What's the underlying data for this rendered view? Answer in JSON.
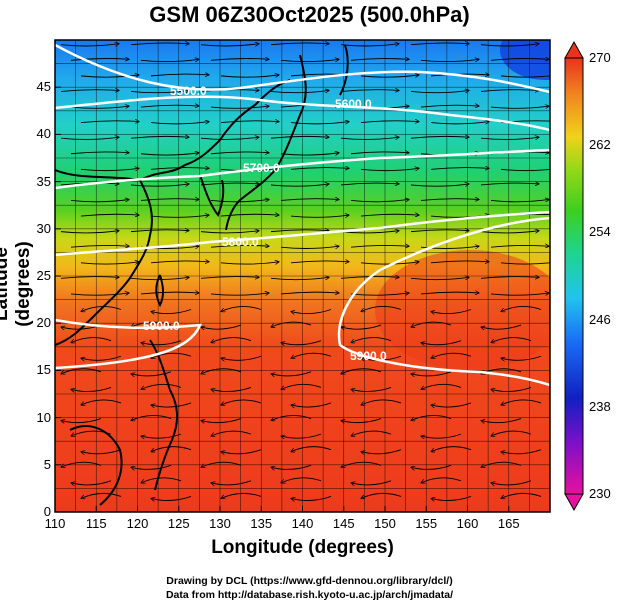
{
  "title": "GSM 06Z30Oct2025 (500.0hPa)",
  "axes": {
    "xlabel": "Longitude (degrees)",
    "ylabel": "Latitude (degrees)",
    "xticks": [
      "110",
      "115",
      "120",
      "125",
      "130",
      "135",
      "140",
      "145",
      "150",
      "155",
      "160",
      "165"
    ],
    "yticks": [
      "0",
      "5",
      "10",
      "15",
      "20",
      "25",
      "30",
      "35",
      "40",
      "45"
    ],
    "xlim": [
      110,
      170
    ],
    "ylim": [
      0,
      50
    ]
  },
  "colorbar": {
    "ticks": [
      "270",
      "262",
      "254",
      "246",
      "238",
      "230"
    ],
    "range": [
      230,
      270
    ],
    "colors": {
      "230": "#e8109e",
      "234": "#7a10c8",
      "238": "#1020c0",
      "242": "#1a6ef5",
      "246": "#22c3ee",
      "250": "#1ed490",
      "254": "#3ccf20",
      "258": "#9ad818",
      "262": "#f2d21a",
      "266": "#f08220",
      "270": "#e8341c"
    }
  },
  "contours": [
    {
      "label": "5500.0",
      "level": 5500
    },
    {
      "label": "5600.0",
      "level": 5600
    },
    {
      "label": "5700.0",
      "level": 5700
    },
    {
      "label": "5800.0",
      "level": 5800
    },
    {
      "label": "5900.0",
      "level": 5900
    },
    {
      "label": "5900.0",
      "level": 5900
    }
  ],
  "credits": {
    "line1": "Drawing by DCL (https://www.gfd-dennou.org/library/dcl/)",
    "line2": "Data from http://database.rish.kyoto-u.ac.jp/arch/jmadata/"
  }
}
